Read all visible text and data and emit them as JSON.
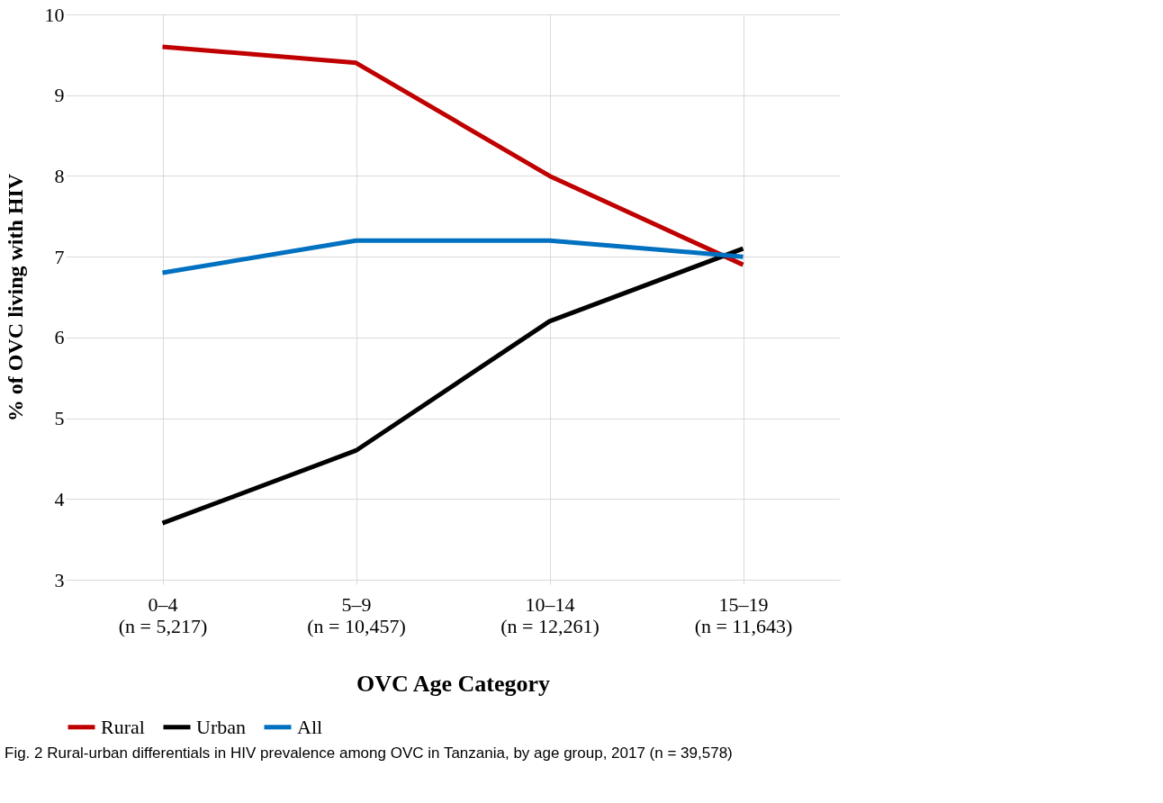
{
  "chart_data": {
    "type": "line",
    "xlabel": "OVC Age Category",
    "ylabel": "% of OVC living with HIV",
    "categories": [
      "0–4\n(n = 5,217)",
      "5–9\n(n = 10,457)",
      "10–14\n(n = 12,261)",
      "15–19\n(n = 11,643)"
    ],
    "series": [
      {
        "name": "Rural",
        "color": "#c00000",
        "values": [
          9.6,
          9.4,
          8.0,
          6.9
        ]
      },
      {
        "name": "Urban",
        "color": "#000000",
        "values": [
          3.7,
          4.6,
          6.2,
          7.1
        ]
      },
      {
        "name": "All",
        "color": "#0070c0",
        "values": [
          6.8,
          7.2,
          7.2,
          7.0
        ]
      }
    ],
    "ylim": [
      3,
      10
    ],
    "yticks": [
      3,
      4,
      5,
      6,
      7,
      8,
      9,
      10
    ],
    "grid": true,
    "legend": "bottom",
    "marker": "none",
    "line_style": "solid",
    "annotations": [
      "Fig. 2 Rural-urban differentials in HIV prevalence among OVC in Tanzania, by age group, 2017 (n = 39,578)"
    ]
  }
}
